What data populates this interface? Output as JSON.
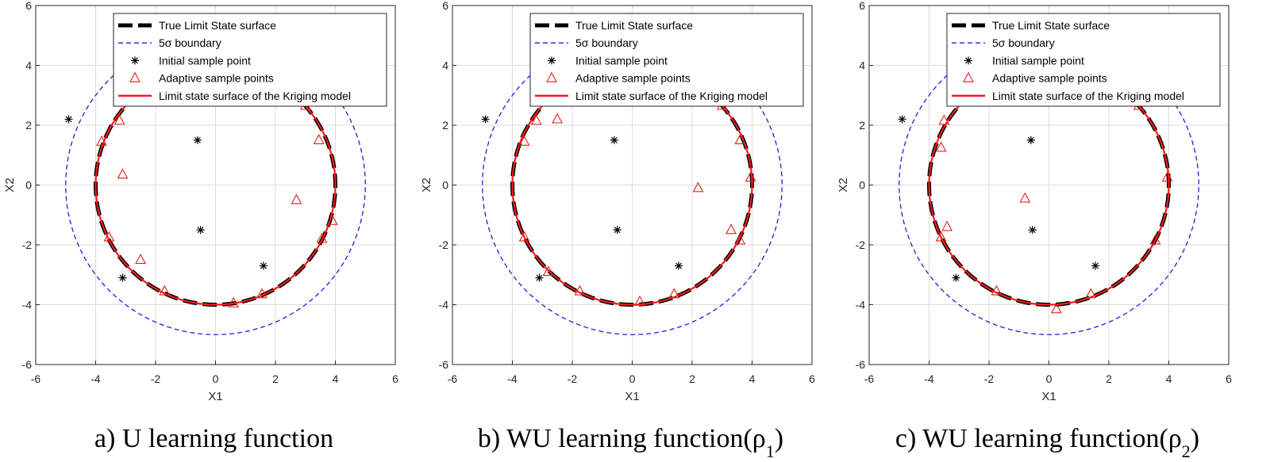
{
  "legend_entries": [
    {
      "label": "True Limit State surface",
      "style": "thick-dash",
      "color": "#000000"
    },
    {
      "label": "5σ boundary",
      "style": "dashed",
      "color": "#1f1fdd"
    },
    {
      "label": "Initial sample point",
      "style": "star-marker",
      "color": "#000000"
    },
    {
      "label": "Adaptive sample points",
      "style": "triangle-marker",
      "color": "#ee1c1c"
    },
    {
      "label": "Limit state surface of the Kriging model",
      "style": "solid",
      "color": "#ee1c1c"
    }
  ],
  "colors": {
    "true_surface": "#000000",
    "kriging_surface": "#ee1c1c",
    "boundary": "#1f1fdd",
    "adaptive": "#ee1c1c",
    "initial": "#000000",
    "grid": "#dcdcdc"
  },
  "chart_data": [
    {
      "type": "scatter",
      "caption_main": "a) U learning function",
      "caption_sub": "",
      "caption_tail": "",
      "xlabel": "X1",
      "ylabel": "X2",
      "xlim": [
        -6,
        6
      ],
      "ylim": [
        -6,
        6
      ],
      "xticks": [
        -6,
        -4,
        -2,
        0,
        2,
        4,
        6
      ],
      "yticks": [
        -6,
        -4,
        -2,
        0,
        2,
        4,
        6
      ],
      "grid": true,
      "legend_position": "top-right",
      "limit_state": {
        "center": [
          0,
          0
        ],
        "radius_x": 4,
        "radius_y": 4,
        "visible_above_y": 2.75
      },
      "boundary": {
        "center": [
          0,
          0
        ],
        "radius": 5,
        "visible_below_y": 3.85
      },
      "initial_points": [
        [
          -4.9,
          2.2
        ],
        [
          -0.6,
          1.5
        ],
        [
          -0.5,
          -1.5
        ],
        [
          -3.1,
          -3.1
        ],
        [
          1.6,
          -2.7
        ]
      ],
      "adaptive_points": [
        [
          -3.8,
          1.45
        ],
        [
          -3.2,
          2.15
        ],
        [
          -3.1,
          0.35
        ],
        [
          -3.55,
          -1.75
        ],
        [
          -2.5,
          -2.5
        ],
        [
          -1.7,
          -3.55
        ],
        [
          0.6,
          -3.95
        ],
        [
          1.55,
          -3.65
        ],
        [
          2.7,
          -0.5
        ],
        [
          3.45,
          1.5
        ],
        [
          3.55,
          -1.8
        ],
        [
          3.9,
          -1.2
        ],
        [
          3.0,
          2.65
        ]
      ]
    },
    {
      "type": "scatter",
      "caption_main": "b) WU learning function(ρ",
      "caption_sub": "1",
      "caption_tail": ")",
      "xlabel": "X1",
      "ylabel": "X2",
      "xlim": [
        -6,
        6
      ],
      "ylim": [
        -6,
        6
      ],
      "xticks": [
        -6,
        -4,
        -2,
        0,
        2,
        4,
        6
      ],
      "yticks": [
        -6,
        -4,
        -2,
        0,
        2,
        4,
        6
      ],
      "grid": true,
      "legend_position": "top-right",
      "limit_state": {
        "center": [
          0,
          0
        ],
        "radius_x": 4,
        "radius_y": 4,
        "visible_above_y": 2.75
      },
      "boundary": {
        "center": [
          0,
          0
        ],
        "radius": 5,
        "visible_below_y": 3.85
      },
      "initial_points": [
        [
          -4.9,
          2.2
        ],
        [
          -0.6,
          1.5
        ],
        [
          -0.5,
          -1.5
        ],
        [
          -3.1,
          -3.1
        ],
        [
          1.55,
          -2.7
        ]
      ],
      "adaptive_points": [
        [
          -3.2,
          2.15
        ],
        [
          -2.5,
          2.2
        ],
        [
          -3.6,
          1.45
        ],
        [
          -3.6,
          -1.75
        ],
        [
          -2.8,
          -2.9
        ],
        [
          -1.75,
          -3.55
        ],
        [
          0.25,
          -3.9
        ],
        [
          1.4,
          -3.65
        ],
        [
          2.2,
          -0.1
        ],
        [
          3.3,
          -1.5
        ],
        [
          3.6,
          -1.85
        ],
        [
          3.6,
          1.5
        ],
        [
          3.95,
          0.25
        ],
        [
          3.0,
          2.65
        ]
      ]
    },
    {
      "type": "scatter",
      "caption_main": "c) WU learning function(ρ",
      "caption_sub": "2",
      "caption_tail": ")",
      "xlabel": "X1",
      "ylabel": "X2",
      "xlim": [
        -6,
        6
      ],
      "ylim": [
        -6,
        6
      ],
      "xticks": [
        -6,
        -4,
        -2,
        0,
        2,
        4,
        6
      ],
      "yticks": [
        -6,
        -4,
        -2,
        0,
        2,
        4,
        6
      ],
      "grid": true,
      "legend_position": "top-right",
      "limit_state": {
        "center": [
          0,
          0
        ],
        "radius_x": 4,
        "radius_y": 4,
        "visible_above_y": 2.75
      },
      "boundary": {
        "center": [
          0,
          0
        ],
        "radius": 5,
        "visible_below_y": 3.85
      },
      "initial_points": [
        [
          -4.9,
          2.2
        ],
        [
          -0.6,
          1.5
        ],
        [
          -0.55,
          -1.5
        ],
        [
          -3.1,
          -3.1
        ],
        [
          1.55,
          -2.7
        ]
      ],
      "adaptive_points": [
        [
          -3.5,
          2.15
        ],
        [
          -3.6,
          1.25
        ],
        [
          -3.6,
          -1.75
        ],
        [
          -3.4,
          -1.4
        ],
        [
          -0.8,
          -0.45
        ],
        [
          -1.75,
          -3.55
        ],
        [
          0.25,
          -4.15
        ],
        [
          1.4,
          -3.65
        ],
        [
          3.55,
          -1.85
        ],
        [
          3.95,
          0.25
        ],
        [
          3.0,
          2.65
        ]
      ]
    }
  ]
}
